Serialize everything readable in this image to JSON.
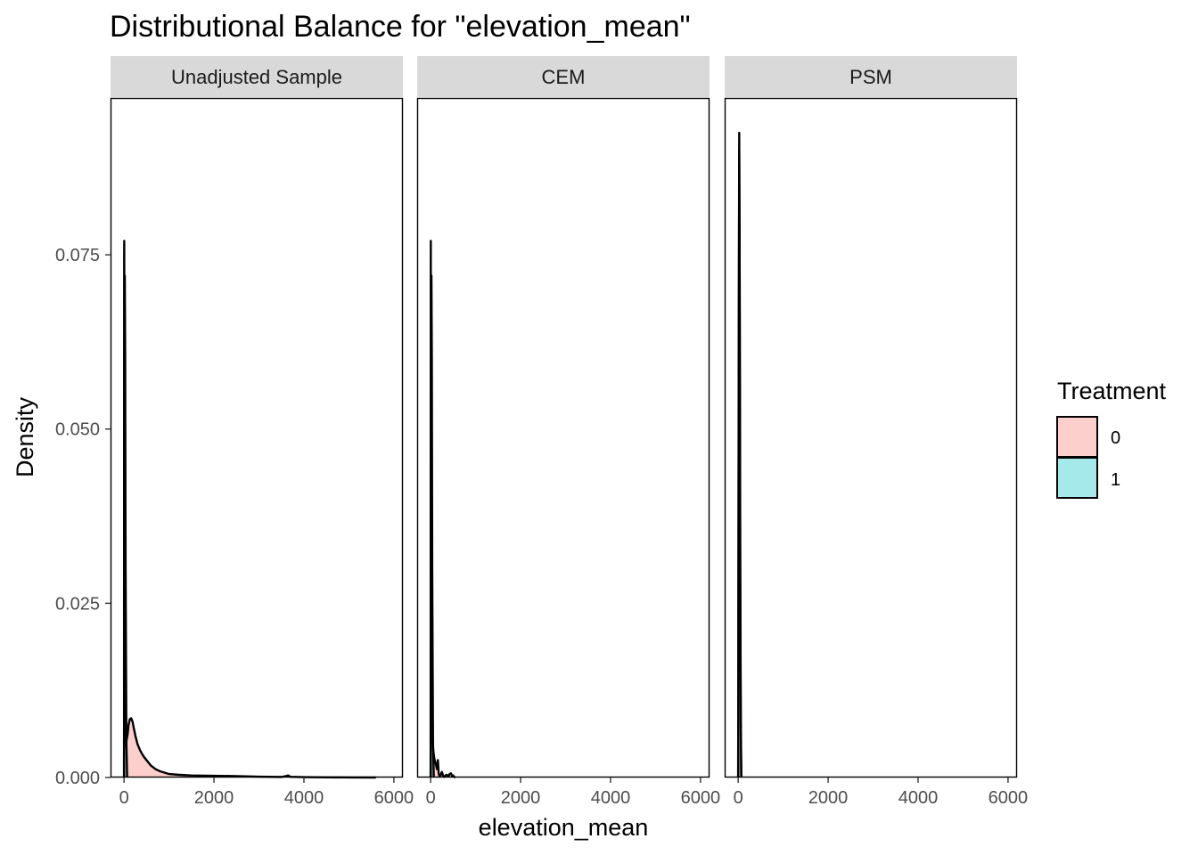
{
  "chart_data": {
    "type": "area",
    "title": "Distributional Balance for \"elevation_mean\"",
    "xlabel": "elevation_mean",
    "ylabel": "Density",
    "xlim": [
      -300,
      6200
    ],
    "ylim": [
      0,
      0.0975
    ],
    "x_ticks": [
      0,
      2000,
      4000,
      6000
    ],
    "y_ticks": [
      0.0,
      0.025,
      0.05,
      0.075
    ],
    "y_tick_labels": [
      "0.000",
      "0.025",
      "0.050",
      "0.075"
    ],
    "grid": false,
    "legend": {
      "title": "Treatment",
      "position": "right",
      "entries": [
        {
          "label": "0",
          "color": "#F8766D"
        },
        {
          "label": "1",
          "color": "#00BFC4"
        }
      ]
    },
    "panels": [
      {
        "label": "Unadjusted Sample",
        "series": [
          {
            "name": "0",
            "color": "#F8766D",
            "x": [
              0,
              1,
              2,
              3,
              5,
              8,
              10,
              15,
              25,
              40,
              60,
              80,
              100,
              130,
              160,
              190,
              220,
              260,
              300,
              350,
              400,
              450,
              500,
              550,
              600,
              700,
              800,
              900,
              1000,
              1200,
              1500,
              2000,
              2500,
              3000,
              3500,
              3600,
              3650,
              3700,
              4000,
              4500,
              5000,
              5600
            ],
            "y": [
              0.0,
              0.03,
              0.06,
              0.075,
              0.077,
              0.06,
              0.04,
              0.02,
              0.006,
              0.0045,
              0.0055,
              0.0062,
              0.0075,
              0.0084,
              0.0085,
              0.008,
              0.007,
              0.0058,
              0.0048,
              0.004,
              0.0034,
              0.0029,
              0.0025,
              0.0021,
              0.0017,
              0.0012,
              0.0009,
              0.0007,
              0.0005,
              0.0004,
              0.0003,
              0.00025,
              0.0002,
              0.00012,
              8e-05,
              0.0002,
              0.0003,
              0.0001,
              5e-05,
              3e-05,
              1e-05,
              0.0
            ]
          },
          {
            "name": "1",
            "color": "#00BFC4",
            "x": [
              0,
              1,
              2,
              3,
              4,
              6,
              8
            ],
            "y": [
              0.0,
              0.06,
              0.072,
              0.06,
              0.03,
              0.005,
              0.0
            ]
          }
        ]
      },
      {
        "label": "CEM",
        "series": [
          {
            "name": "0",
            "color": "#F8766D",
            "x": [
              0,
              1,
              2,
              3,
              5,
              8,
              12,
              20,
              30,
              40,
              50,
              60,
              80,
              100,
              120,
              140,
              160,
              180,
              200,
              220,
              250,
              280,
              300,
              350,
              400,
              420,
              450,
              480,
              500,
              520,
              550
            ],
            "y": [
              0.0,
              0.04,
              0.07,
              0.077,
              0.06,
              0.03,
              0.012,
              0.0115,
              0.009,
              0.006,
              0.0045,
              0.0038,
              0.0028,
              0.0022,
              0.0018,
              0.0012,
              0.0025,
              0.0005,
              0.0002,
              0.0003,
              0.0008,
              0.0002,
              0.0001,
              0.0004,
              0.0002,
              0.0005,
              0.0006,
              0.0002,
              0.0003,
              0.0001,
              0.0
            ]
          },
          {
            "name": "1",
            "color": "#00BFC4",
            "x": [
              0,
              1,
              2,
              3,
              4,
              6,
              8
            ],
            "y": [
              0.0,
              0.05,
              0.072,
              0.06,
              0.03,
              0.005,
              0.0
            ]
          }
        ]
      },
      {
        "label": "PSM",
        "series": [
          {
            "name": "0",
            "color": "#F8766D",
            "x": [
              0,
              1,
              2,
              3,
              4,
              5,
              6
            ],
            "y": [
              0.0,
              0.06,
              0.0925,
              0.07,
              0.03,
              0.008,
              0.0
            ]
          },
          {
            "name": "1",
            "color": "#00BFC4",
            "x": [
              0,
              1,
              2,
              3,
              4,
              5,
              6
            ],
            "y": [
              0.0,
              0.05,
              0.09,
              0.065,
              0.025,
              0.006,
              0.0
            ]
          }
        ]
      }
    ]
  }
}
